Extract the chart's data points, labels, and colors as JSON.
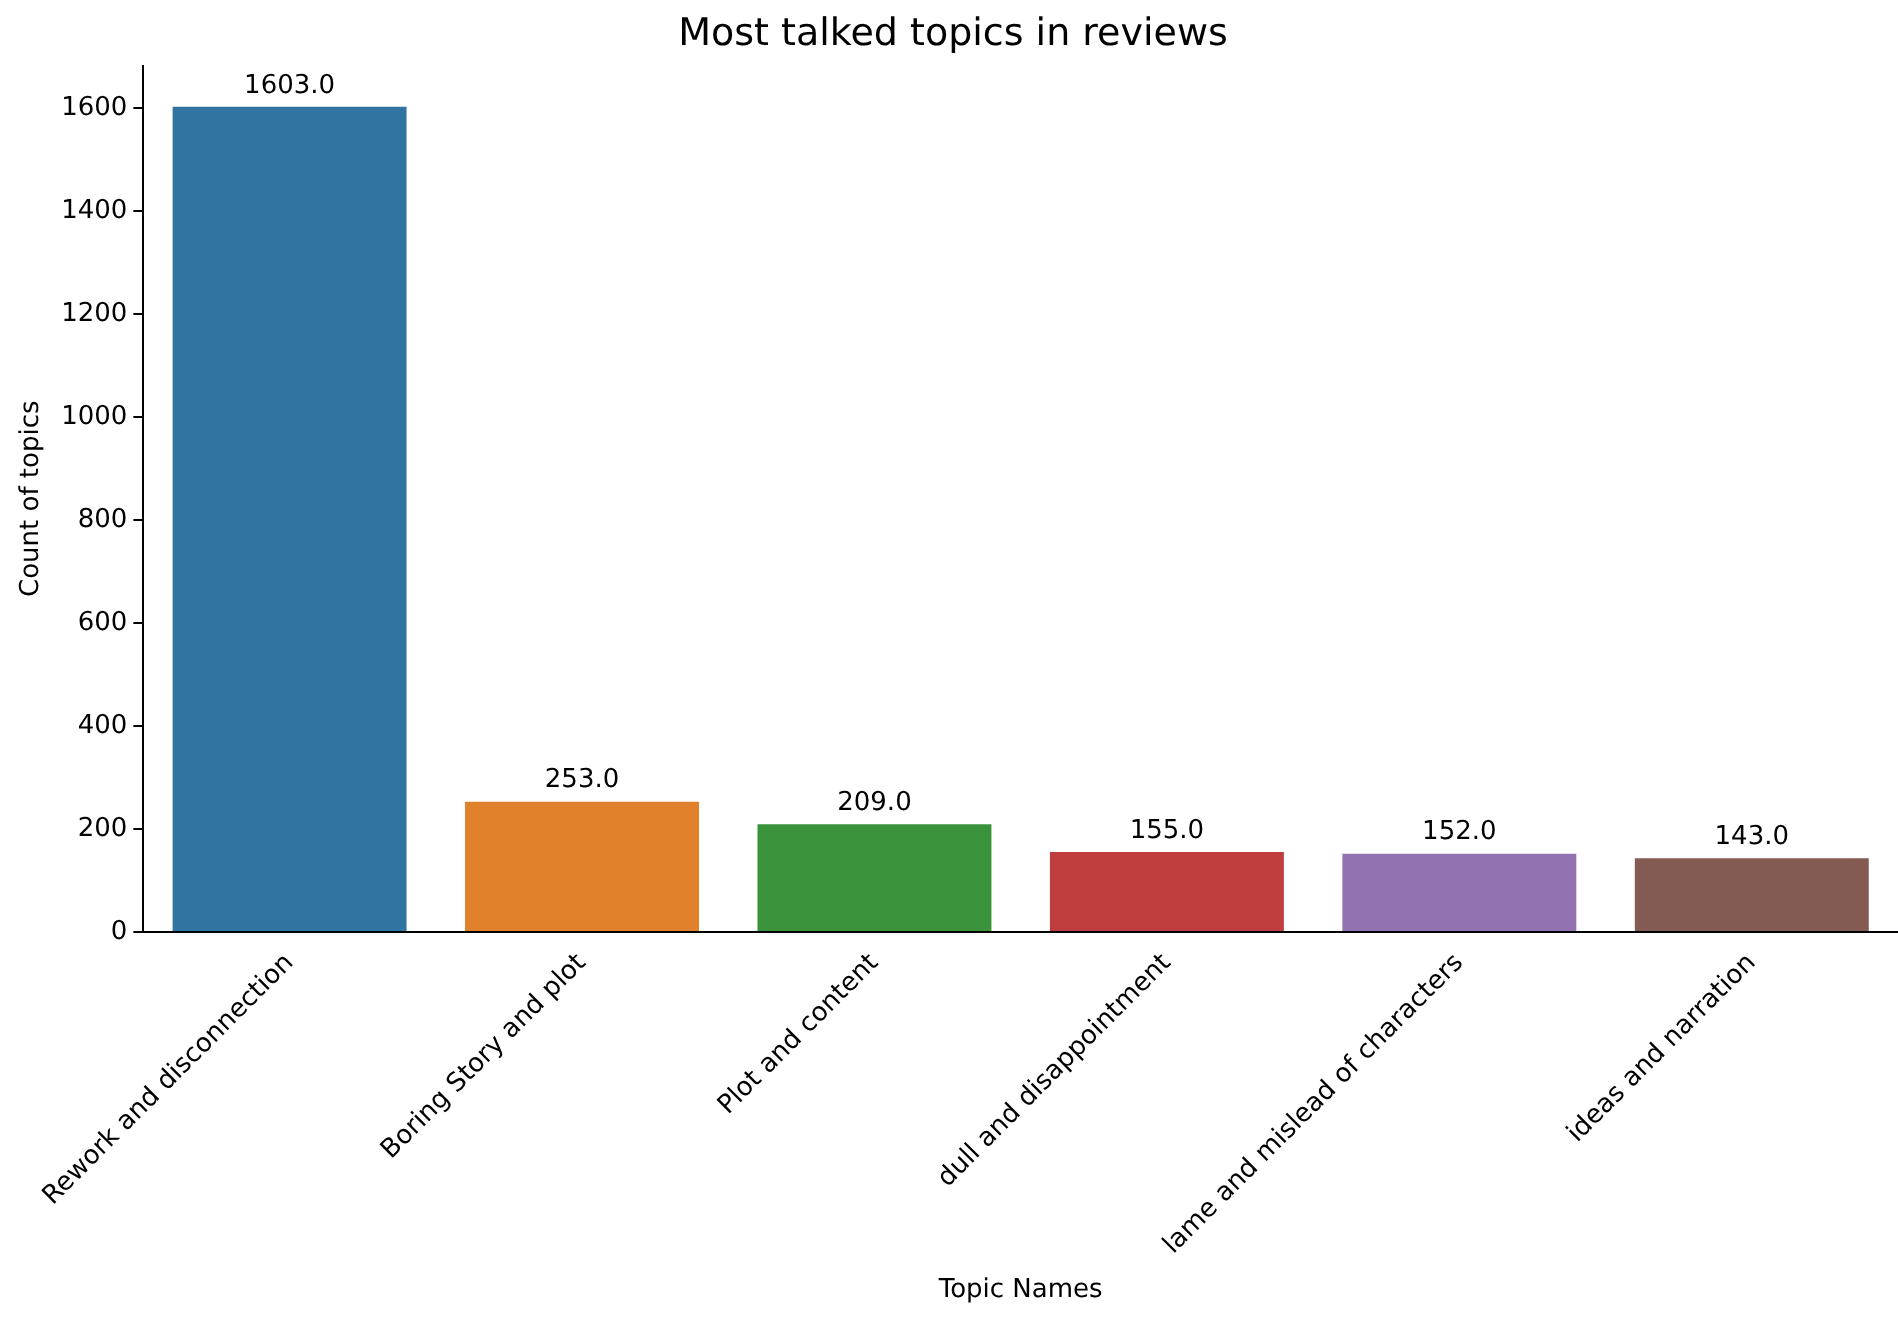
{
  "chart_data": {
    "type": "bar",
    "title": "Most talked topics in reviews",
    "xlabel": "Topic Names",
    "ylabel": "Count of topics",
    "categories": [
      "Rework and disconnection",
      "Boring Story and plot",
      "Plot and content",
      "dull and disappointment",
      "lame and mislead of characters",
      "ideas and narration"
    ],
    "values": [
      1603,
      253,
      209,
      155,
      152,
      143
    ],
    "colors": [
      "#3274a1",
      "#e1812c",
      "#3a923a",
      "#c03d3e",
      "#9372b2",
      "#845b53"
    ],
    "value_labels": [
      "1603.0",
      "253.0",
      "209.0",
      "155.0",
      "152.0",
      "143.0"
    ],
    "ylim": [
      0,
      1683
    ],
    "yticks": [
      0,
      200,
      400,
      600,
      800,
      1000,
      1200,
      1400,
      1600
    ],
    "grid": false,
    "legend": false
  }
}
